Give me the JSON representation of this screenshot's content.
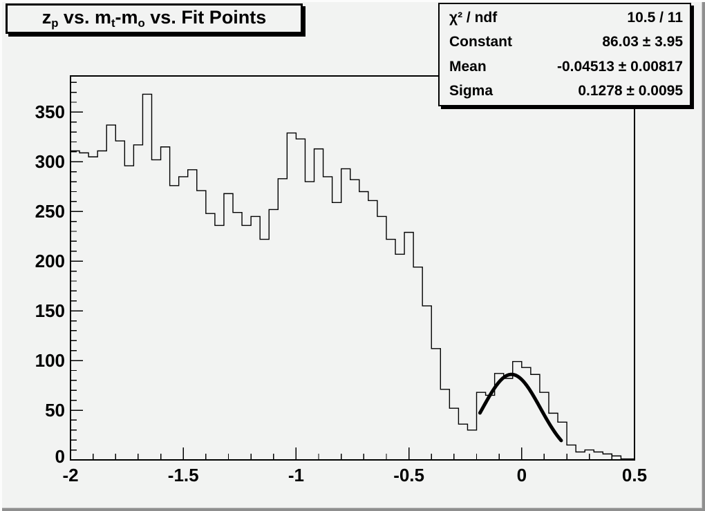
{
  "canvas": {
    "background": "#f2f3f2",
    "bevel_light": "#fcfcfc",
    "bevel_dark": "#8f8f8f",
    "line_color": "#000000"
  },
  "title": {
    "segments": [
      {
        "text": "z",
        "sub": false
      },
      {
        "text": "p",
        "sub": true
      },
      {
        "text": " vs. m",
        "sub": false
      },
      {
        "text": "t",
        "sub": true
      },
      {
        "text": "-m",
        "sub": false
      },
      {
        "text": "o",
        "sub": true
      },
      {
        "text": " vs. Fit Points",
        "sub": false
      }
    ]
  },
  "stats": {
    "rows": [
      {
        "label": "χ² / ndf",
        "value": "10.5 / 11"
      },
      {
        "label": "Constant",
        "value": "86.03 ± 3.95"
      },
      {
        "label": "Mean",
        "value": "-0.04513 ± 0.00817"
      },
      {
        "label": "Sigma",
        "value": "0.1278 ± 0.0095"
      }
    ]
  },
  "chart_data": {
    "type": "bar",
    "subtype": "step-histogram",
    "title": "z_p vs. m_t-m_o vs. Fit Points",
    "xlabel": "",
    "ylabel": "",
    "grid": false,
    "legend_position": "none",
    "bin_start": -2.0,
    "bin_width": 0.04,
    "counts": [
      311,
      309,
      305,
      311,
      337,
      321,
      296,
      317,
      368,
      302,
      315,
      276,
      285,
      292,
      271,
      248,
      236,
      268,
      249,
      236,
      245,
      222,
      252,
      283,
      329,
      323,
      280,
      313,
      285,
      259,
      293,
      282,
      270,
      261,
      245,
      222,
      207,
      229,
      194,
      155,
      112,
      71,
      52,
      36,
      30,
      68,
      65,
      87,
      82,
      99,
      93,
      86,
      68,
      47,
      38,
      15,
      8,
      10,
      8,
      6,
      4,
      1,
      1
    ],
    "fit": {
      "model": "gaussian",
      "constant": 86.03,
      "mean": -0.04513,
      "sigma": 0.1278,
      "chi2": 10.5,
      "ndf": 11,
      "draw_range": [
        -0.185,
        0.175
      ]
    },
    "axes": {
      "x": {
        "min": -2,
        "max": 0.5,
        "major_ticks": [
          -2,
          -1.5,
          -1,
          -0.5,
          0,
          0.5
        ],
        "labels": [
          "-2",
          "-1.5",
          "-1",
          "-0.5",
          "0",
          "0.5"
        ],
        "minor_step": 0.1
      },
      "y": {
        "min": 0,
        "max": 386.4,
        "major_ticks": [
          0,
          50,
          100,
          150,
          200,
          250,
          300,
          350
        ],
        "labels": [
          "0",
          "50",
          "100",
          "150",
          "200",
          "250",
          "300",
          "350"
        ],
        "minor_step": 10
      }
    }
  }
}
